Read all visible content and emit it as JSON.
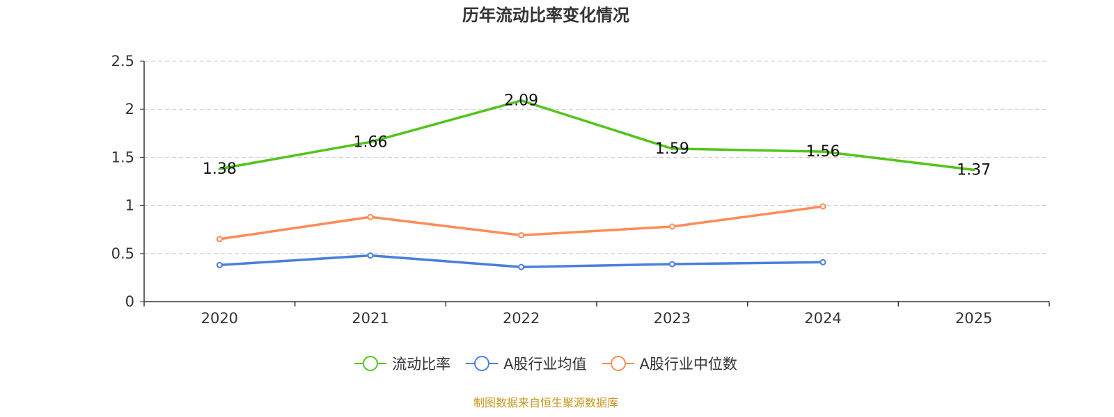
{
  "title": "历年流动比率变化情况",
  "source": "制图数据来自恒生聚源数据库",
  "colors": {
    "current_ratio": "#52c41a",
    "industry_mean": "#4a7fdd",
    "industry_median": "#ff8c55",
    "axis": "#333333",
    "grid": "#cccccc"
  },
  "legend": [
    {
      "label": "流动比率",
      "color": "#52c41a"
    },
    {
      "label": "A股行业均值",
      "color": "#4a7fdd"
    },
    {
      "label": "A股行业中位数",
      "color": "#ff8c55"
    }
  ],
  "chart_data": {
    "type": "line",
    "title": "历年流动比率变化情况",
    "categories": [
      "2020",
      "2021",
      "2022",
      "2023",
      "2024",
      "2025"
    ],
    "ylim": [
      0,
      2.5
    ],
    "yticks": [
      "0",
      "0.5",
      "1",
      "1.5",
      "2",
      "2.5"
    ],
    "grid": true,
    "legend_position": "bottom",
    "series": [
      {
        "name": "流动比率",
        "color": "#52c41a",
        "values": [
          1.38,
          1.66,
          2.09,
          1.59,
          1.56,
          1.37
        ],
        "labels": [
          "1.38",
          "1.66",
          "2.09",
          "1.59",
          "1.56",
          "1.37"
        ],
        "show_markers": false
      },
      {
        "name": "A股行业均值",
        "color": "#4a7fdd",
        "values": [
          0.38,
          0.48,
          0.36,
          0.39,
          0.41,
          null
        ],
        "show_markers": true
      },
      {
        "name": "A股行业中位数",
        "color": "#ff8c55",
        "values": [
          0.65,
          0.88,
          0.69,
          0.78,
          0.99,
          null
        ],
        "show_markers": true
      }
    ]
  }
}
